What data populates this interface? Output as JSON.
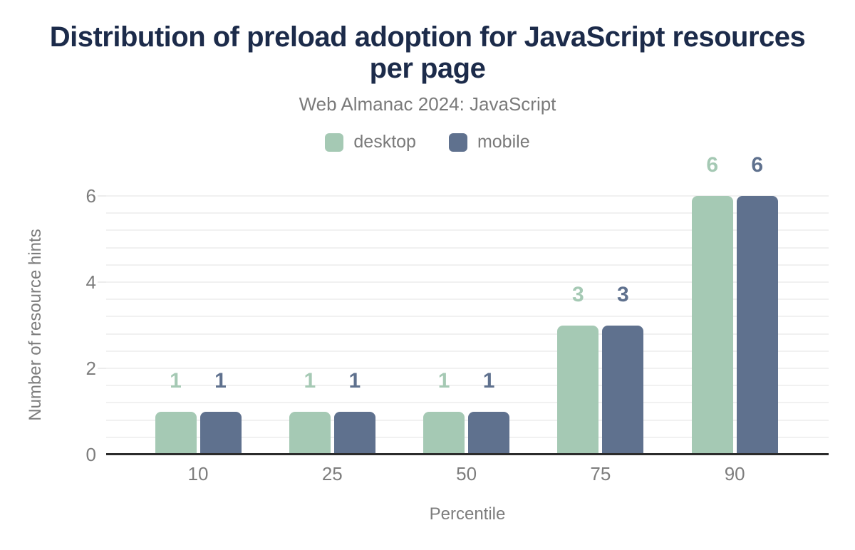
{
  "header": {
    "title": "Distribution of preload adoption for JavaScript resources per page",
    "subtitle": "Web Almanac 2024: JavaScript"
  },
  "chart_data": {
    "type": "bar",
    "title": "Distribution of preload adoption for JavaScript resources per page",
    "subtitle": "Web Almanac 2024: JavaScript",
    "categories": [
      "10",
      "25",
      "50",
      "75",
      "90"
    ],
    "series": [
      {
        "name": "desktop",
        "color": "#a5c9b4",
        "values": [
          1,
          1,
          1,
          3,
          6
        ]
      },
      {
        "name": "mobile",
        "color": "#5f718e",
        "values": [
          1,
          1,
          1,
          3,
          6
        ]
      }
    ],
    "xlabel": "Percentile",
    "ylabel": "Number of resource hints",
    "ylim": [
      0,
      6
    ],
    "yticks": [
      0,
      2,
      4,
      6
    ],
    "minor_grid_step": 0.4,
    "grid": "on",
    "legend_position": "top",
    "value_labels": "above-bars"
  },
  "colors": {
    "title": "#1c2b4a",
    "muted_text": "#7a7a7a",
    "axis_text": "#7d7d7d",
    "axis_line": "#2b2b2b",
    "gridline": "#f1f1f1",
    "background": "#ffffff"
  }
}
